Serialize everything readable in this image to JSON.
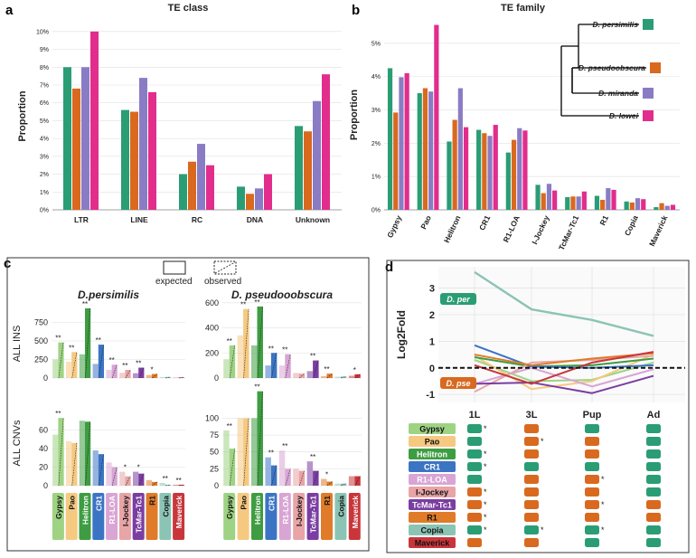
{
  "colors": {
    "per": "#2a9d75",
    "pse": "#d9691f",
    "mir": "#8a7cc4",
    "low": "#e22d8c",
    "axis": "#333333",
    "grid": "#e0e0e0"
  },
  "panel_letters": {
    "a": "a",
    "b": "b",
    "c": "c",
    "d": "d"
  },
  "chart_data": [
    {
      "id": "a",
      "type": "bar",
      "title": "TE class",
      "ylabel": "Proportion",
      "ylim": [
        0,
        10.5
      ],
      "yticks": [
        0,
        1,
        2,
        3,
        4,
        5,
        6,
        7,
        8,
        9,
        10
      ],
      "yticklabels": [
        "0%",
        "1%",
        "2%",
        "3%",
        "4%",
        "5%",
        "6%",
        "7%",
        "8%",
        "9%",
        "10%"
      ],
      "categories": [
        "LTR",
        "LINE",
        "RC",
        "DNA",
        "Unknown"
      ],
      "series": [
        {
          "name": "D. persimilis",
          "values": [
            8.0,
            5.6,
            2.0,
            1.3,
            4.7
          ]
        },
        {
          "name": "D. pseudoobscura",
          "values": [
            6.8,
            5.5,
            2.7,
            0.9,
            4.4
          ]
        },
        {
          "name": "D. miranda",
          "values": [
            8.0,
            7.4,
            3.7,
            1.2,
            6.1
          ]
        },
        {
          "name": "D. lowei",
          "values": [
            10.0,
            6.6,
            2.5,
            2.0,
            7.6
          ]
        }
      ]
    },
    {
      "id": "b",
      "type": "bar",
      "title": "TE family",
      "ylabel": "Proportion",
      "ylim": [
        0,
        5.7
      ],
      "yticks": [
        0,
        1,
        2,
        3,
        4,
        5
      ],
      "yticklabels": [
        "0%",
        "1%",
        "2%",
        "3%",
        "4%",
        "5%"
      ],
      "categories": [
        "Gypsy",
        "Pao",
        "Helitron",
        "CR1",
        "R1-LOA",
        "I-Jockey",
        "TcMar-Tc1",
        "R1",
        "Copia",
        "Maverick"
      ],
      "series": [
        {
          "name": "D. persimilis",
          "values": [
            4.25,
            3.5,
            2.05,
            2.4,
            1.72,
            0.75,
            0.38,
            0.42,
            0.25,
            0.08
          ]
        },
        {
          "name": "D. pseudoobscura",
          "values": [
            2.92,
            3.65,
            2.7,
            2.3,
            2.1,
            0.5,
            0.4,
            0.3,
            0.22,
            0.2
          ]
        },
        {
          "name": "D. miranda",
          "values": [
            3.98,
            3.55,
            3.65,
            2.22,
            2.45,
            0.78,
            0.4,
            0.65,
            0.35,
            0.12
          ]
        },
        {
          "name": "D. lowei",
          "values": [
            4.1,
            5.55,
            2.48,
            2.55,
            2.38,
            0.58,
            0.55,
            0.6,
            0.32,
            0.15
          ]
        }
      ],
      "legend": [
        "D. persimilis",
        "D. pseudoobscura",
        "D. miranda",
        "D. lowei"
      ]
    },
    {
      "id": "c",
      "type": "bar",
      "legend": {
        "expected": "expected",
        "observed": "observed"
      },
      "categories": [
        "Gypsy",
        "Pao",
        "Helitron",
        "CR1",
        "R1-LOA",
        "I-Jockey",
        "TcMar-Tc1",
        "R1",
        "Copia",
        "Maverick"
      ],
      "category_labels": [
        "Gypsy",
        "Pao",
        "Helitron",
        "CR1",
        "R1-LOA",
        "I-Jockey",
        "TcMar-Tc1",
        "R1",
        "Copia",
        "Maverick"
      ],
      "category_colors": [
        "#9ed383",
        "#f6c981",
        "#3e9d42",
        "#3c74c4",
        "#d8a5d4",
        "#e8a4a6",
        "#7a3da1",
        "#e07b2a",
        "#8bc4b5",
        "#c8363b"
      ],
      "row_labels": [
        "ALL INS",
        "ALL CNVs"
      ],
      "col_titles": [
        "D.persimilis",
        "D. pseudooobscura"
      ],
      "subplots": [
        {
          "species": "D.persimilis",
          "metric": "ALL INS",
          "ylim": [
            0,
            1000
          ],
          "yticks": [
            0,
            250,
            500,
            750
          ],
          "expected": [
            250,
            220,
            320,
            190,
            110,
            70,
            65,
            40,
            12,
            5
          ],
          "observed": [
            480,
            350,
            940,
            450,
            180,
            110,
            140,
            55,
            15,
            8
          ],
          "sig": [
            "**",
            "**",
            "**",
            "**",
            "**",
            "**",
            "**",
            "*",
            "",
            ""
          ]
        },
        {
          "species": "D. pseudooobscura",
          "metric": "ALL INS",
          "ylim": [
            0,
            620
          ],
          "yticks": [
            0,
            200,
            400,
            600
          ],
          "expected": [
            150,
            340,
            260,
            100,
            100,
            40,
            55,
            15,
            10,
            18
          ],
          "observed": [
            260,
            550,
            570,
            200,
            190,
            35,
            140,
            35,
            12,
            30
          ],
          "sig": [
            "**",
            "**",
            "**",
            "**",
            "**",
            "",
            "**",
            "**",
            "",
            "*"
          ]
        },
        {
          "species": "D.persimilis",
          "metric": "ALL CNVs",
          "ylim": [
            0,
            80
          ],
          "yticks": [
            0,
            20,
            40,
            60
          ],
          "expected": [
            55,
            48,
            70,
            38,
            25,
            15,
            15,
            6,
            3,
            1
          ],
          "observed": [
            73,
            46,
            69,
            34,
            20,
            10,
            13,
            4,
            1,
            1
          ],
          "sig": [
            "**",
            "",
            "",
            "",
            "",
            "*",
            "*",
            "",
            "**",
            "**"
          ]
        },
        {
          "species": "D. pseudooobscura",
          "metric": "ALL CNVs",
          "ylim": [
            0,
            110
          ],
          "yticks": [
            0,
            25,
            50,
            75,
            100
          ],
          "expected": [
            82,
            100,
            100,
            42,
            52,
            25,
            36,
            10,
            3,
            14
          ],
          "observed": [
            55,
            100,
            140,
            30,
            25,
            22,
            22,
            6,
            3,
            14
          ],
          "sig": [
            "**",
            "",
            "**",
            "**",
            "**",
            "",
            "**",
            "*",
            "",
            ""
          ]
        }
      ]
    },
    {
      "id": "d",
      "type": "line",
      "ylabel": "Log2Fold",
      "ylim": [
        -1.3,
        3.8
      ],
      "yticks": [
        -1,
        0,
        1,
        2,
        3
      ],
      "categories": [
        "1L",
        "3L",
        "Pup",
        "Ad"
      ],
      "labels": {
        "per": "D. per",
        "pse": "D. pse"
      },
      "series": [
        {
          "name": "Gypsy",
          "color": "#9ed383",
          "values": [
            0.3,
            -0.5,
            -0.45,
            0.2
          ]
        },
        {
          "name": "Pao",
          "color": "#f6c981",
          "values": [
            0.45,
            -0.8,
            -0.5,
            0.5
          ]
        },
        {
          "name": "Helitron",
          "color": "#3e9d42",
          "values": [
            0.4,
            0.05,
            0.1,
            0.35
          ]
        },
        {
          "name": "CR1",
          "color": "#3c74c4",
          "values": [
            0.85,
            0.05,
            0.0,
            0.1
          ]
        },
        {
          "name": "R1-LOA",
          "color": "#d8a5d4",
          "values": [
            -0.6,
            0.0,
            -0.7,
            -0.05
          ]
        },
        {
          "name": "I-Jockey",
          "color": "#e8a4a6",
          "values": [
            -0.9,
            0.2,
            0.3,
            0.45
          ]
        },
        {
          "name": "TcMar-Tc1",
          "color": "#7a3da1",
          "values": [
            -0.6,
            -0.55,
            -0.95,
            -0.3
          ]
        },
        {
          "name": "R1",
          "color": "#e07b2a",
          "values": [
            0.5,
            0.1,
            0.35,
            0.55
          ]
        },
        {
          "name": "Copia",
          "color": "#8bc4b5",
          "values": [
            3.6,
            2.2,
            1.8,
            1.2
          ]
        },
        {
          "name": "Maverick",
          "color": "#c8363b",
          "values": [
            0.1,
            -0.6,
            0.2,
            0.6
          ]
        }
      ],
      "table": {
        "rows": [
          "Gypsy",
          "Pao",
          "Helitron",
          "CR1",
          "R1-LOA",
          "I-Jockey",
          "TcMar-Tc1",
          "R1",
          "Copia",
          "Maverick"
        ],
        "row_display": [
          "Gypsy",
          "Pao",
          "Helitron",
          "CR1",
          "R1-LOA",
          "I-Jockey",
          "TcMar-Tc1",
          "R1",
          "Copia",
          "Maverick"
        ],
        "row_colors": [
          "#9ed383",
          "#f6c981",
          "#3e9d42",
          "#3c74c4",
          "#d8a5d4",
          "#e8a4a6",
          "#7a3da1",
          "#e07b2a",
          "#8bc4b5",
          "#c8363b"
        ],
        "row_text_colors": [
          "#111",
          "#111",
          "#fff",
          "#fff",
          "#fff",
          "#111",
          "#fff",
          "#111",
          "#111",
          "#111"
        ],
        "cells": [
          [
            "per",
            "pse",
            "per",
            "per"
          ],
          [
            "per",
            "pse",
            "pse",
            "per"
          ],
          [
            "per",
            "pse",
            "pse",
            "per"
          ],
          [
            "per",
            "per",
            "per",
            "per"
          ],
          [
            "per",
            "pse",
            "pse",
            "per"
          ],
          [
            "pse",
            "pse",
            "pse",
            "per"
          ],
          [
            "pse",
            "pse",
            "pse",
            "pse"
          ],
          [
            "pse",
            "pse",
            "pse",
            "pse"
          ],
          [
            "per",
            "per",
            "per",
            "per"
          ],
          [
            "pse",
            "pse",
            "per",
            "per"
          ]
        ],
        "stars": [
          [
            "*",
            "",
            "",
            ""
          ],
          [
            "",
            "*",
            "",
            ""
          ],
          [
            "*",
            "",
            "",
            ""
          ],
          [
            "*",
            "",
            "",
            ""
          ],
          [
            "",
            "",
            "*",
            ""
          ],
          [
            "*",
            "",
            "",
            ""
          ],
          [
            "*",
            "",
            "*",
            ""
          ],
          [
            "*",
            "",
            "",
            ""
          ],
          [
            "*",
            "*",
            "*",
            ""
          ],
          [
            "",
            "",
            "",
            ""
          ]
        ]
      }
    }
  ]
}
